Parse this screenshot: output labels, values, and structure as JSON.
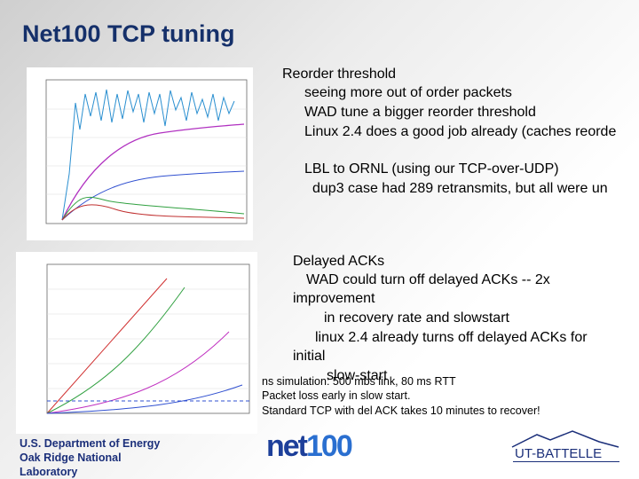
{
  "header": {
    "title": "Net100 TCP tuning"
  },
  "block1": {
    "heading": "Reorder threshold",
    "lines": [
      "seeing more out of order packets",
      "WAD tune a bigger reorder threshold",
      "Linux 2.4 does a good job already (caches reorde"
    ],
    "sub_heading": "LBL to ORNL (using our TCP-over-UDP)",
    "sub_lines": [
      "dup3 case had 289 retransmits, but all were un"
    ]
  },
  "block2": {
    "heading": "Delayed ACKs",
    "lines": [
      "WAD could turn off delayed ACKs -- 2x",
      "improvement",
      "in recovery rate and slowstart",
      "linux 2.4 already turns off delayed ACKs for",
      "initial",
      "slow-start"
    ]
  },
  "block3": {
    "lines": [
      "ns simulation: 500 mbs link, 80 ms RTT",
      "Packet  loss early in slow start.",
      "Standard TCP with del ACK takes 10 minutes to recover!"
    ]
  },
  "footer": {
    "org_lines": [
      "U.S. Department of Energy",
      "Oak Ridge National",
      "Laboratory"
    ],
    "logo_left": "net",
    "logo_right": "100",
    "partner": "UT-BATTELLE"
  }
}
